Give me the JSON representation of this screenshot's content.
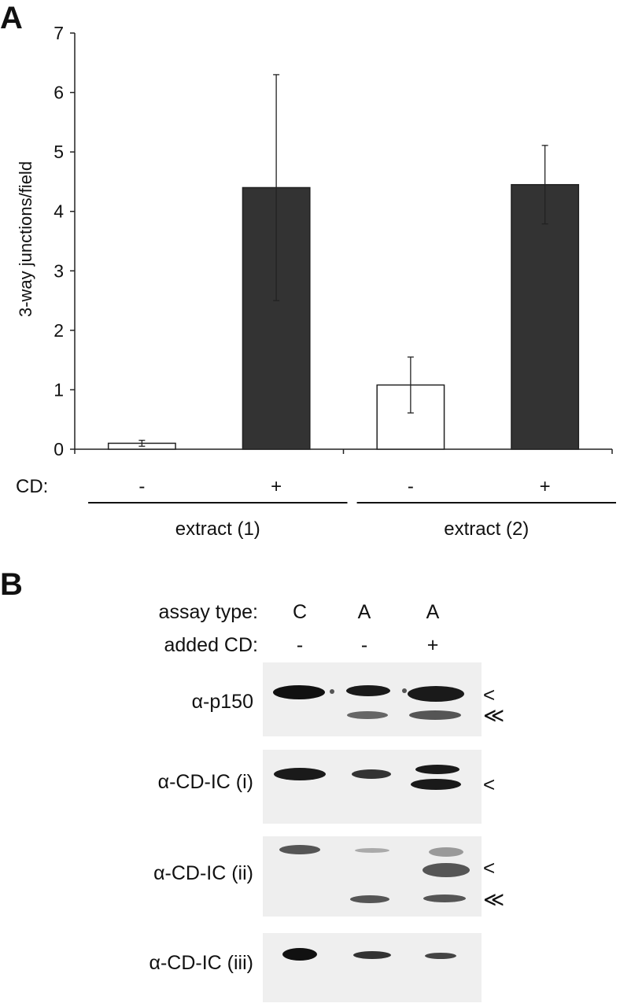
{
  "panel_a": {
    "letter": "A"
  },
  "panel_b": {
    "letter": "B",
    "header_rows": [
      {
        "label": "assay type:",
        "lanes": [
          "C",
          "A",
          "A"
        ]
      },
      {
        "label": "added CD:",
        "lanes": [
          "-",
          "-",
          "+"
        ]
      }
    ],
    "blots": [
      {
        "label": "α-p150",
        "markers": [
          "<",
          "≪"
        ]
      },
      {
        "label": "α-CD-IC (i)",
        "markers": [
          "<"
        ]
      },
      {
        "label": "α-CD-IC (ii)",
        "markers": [
          "<",
          "≪"
        ]
      },
      {
        "label": "α-CD-IC (iii)",
        "markers": []
      }
    ]
  },
  "chart_data": {
    "type": "bar",
    "title": "",
    "xlabel": "",
    "ylabel": "3-way junctions/field",
    "ylim": [
      0,
      7
    ],
    "yticks": [
      0,
      1,
      2,
      3,
      4,
      5,
      6,
      7
    ],
    "grid": false,
    "cd_row_label": "CD:",
    "categories": [
      "-",
      "+",
      "-",
      "+"
    ],
    "groups": [
      {
        "label": "extract (1)",
        "members": [
          0,
          1
        ]
      },
      {
        "label": "extract (2)",
        "members": [
          2,
          3
        ]
      }
    ],
    "values": [
      0.1,
      4.4,
      1.08,
      4.45
    ],
    "errors": [
      0.05,
      1.9,
      0.47,
      0.66
    ],
    "colors": [
      "#ffffff",
      "#333333",
      "#ffffff",
      "#333333"
    ]
  }
}
